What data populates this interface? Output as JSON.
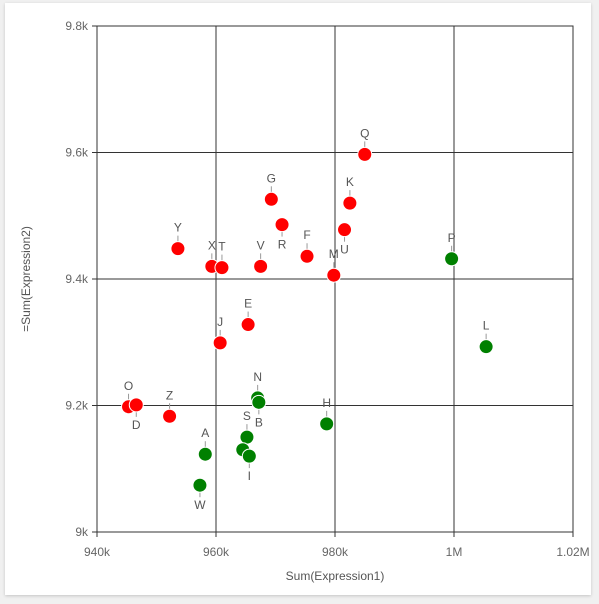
{
  "chart_data": {
    "type": "scatter",
    "xlabel": "Sum(Expression1)",
    "ylabel": "=Sum(Expression2)",
    "xlim": [
      940000,
      1020000
    ],
    "ylim": [
      9000,
      9800
    ],
    "xticks": [
      {
        "value": 940000,
        "label": "940k"
      },
      {
        "value": 960000,
        "label": "960k"
      },
      {
        "value": 980000,
        "label": "980k"
      },
      {
        "value": 1000000,
        "label": "1M"
      },
      {
        "value": 1020000,
        "label": "1.02M"
      }
    ],
    "yticks": [
      {
        "value": 9000,
        "label": "9k"
      },
      {
        "value": 9200,
        "label": "9.2k"
      },
      {
        "value": 9400,
        "label": "9.4k"
      },
      {
        "value": 9600,
        "label": "9.6k"
      },
      {
        "value": 9800,
        "label": "9.8k"
      }
    ],
    "grid": true,
    "colors": {
      "red": "#ff0000",
      "green": "#008000",
      "grid": "#333333"
    },
    "points": [
      {
        "label": "O",
        "x": 945300,
        "y": 9198,
        "color": "red",
        "label_pos": "above"
      },
      {
        "label": "D",
        "x": 946600,
        "y": 9201,
        "color": "red",
        "label_pos": "below"
      },
      {
        "label": "Z",
        "x": 952200,
        "y": 9183,
        "color": "red",
        "label_pos": "above"
      },
      {
        "label": "Y",
        "x": 953600,
        "y": 9448,
        "color": "red",
        "label_pos": "above"
      },
      {
        "label": "A",
        "x": 958200,
        "y": 9123,
        "color": "green",
        "label_pos": "above"
      },
      {
        "label": "W",
        "x": 957300,
        "y": 9074,
        "color": "green",
        "label_pos": "below"
      },
      {
        "label": "X",
        "x": 959300,
        "y": 9420,
        "color": "red",
        "label_pos": "above"
      },
      {
        "label": "T",
        "x": 961000,
        "y": 9418,
        "color": "red",
        "label_pos": "above"
      },
      {
        "label": "J",
        "x": 960700,
        "y": 9299,
        "color": "red",
        "label_pos": "above"
      },
      {
        "label": "E",
        "x": 965400,
        "y": 9328,
        "color": "red",
        "label_pos": "above"
      },
      {
        "label": "S",
        "x": 965200,
        "y": 9150,
        "color": "green",
        "label_pos": "above"
      },
      {
        "label": "",
        "x": 964500,
        "y": 9130,
        "color": "green",
        "label_pos": "none"
      },
      {
        "label": "I",
        "x": 965600,
        "y": 9120,
        "color": "green",
        "label_pos": "below"
      },
      {
        "label": "N",
        "x": 967000,
        "y": 9212,
        "color": "green",
        "label_pos": "above"
      },
      {
        "label": "B",
        "x": 967200,
        "y": 9205,
        "color": "green",
        "label_pos": "below"
      },
      {
        "label": "V",
        "x": 967500,
        "y": 9420,
        "color": "red",
        "label_pos": "above"
      },
      {
        "label": "G",
        "x": 969300,
        "y": 9526,
        "color": "red",
        "label_pos": "above"
      },
      {
        "label": "R",
        "x": 971100,
        "y": 9486,
        "color": "red",
        "label_pos": "below"
      },
      {
        "label": "F",
        "x": 975300,
        "y": 9436,
        "color": "red",
        "label_pos": "above"
      },
      {
        "label": "H",
        "x": 978600,
        "y": 9171,
        "color": "green",
        "label_pos": "above"
      },
      {
        "label": "M",
        "x": 979800,
        "y": 9406,
        "color": "red",
        "label_pos": "above"
      },
      {
        "label": "U",
        "x": 981600,
        "y": 9478,
        "color": "red",
        "label_pos": "below"
      },
      {
        "label": "K",
        "x": 982500,
        "y": 9520,
        "color": "red",
        "label_pos": "above"
      },
      {
        "label": "Q",
        "x": 985000,
        "y": 9597,
        "color": "red",
        "label_pos": "above"
      },
      {
        "label": "P",
        "x": 999600,
        "y": 9432,
        "color": "green",
        "label_pos": "above"
      },
      {
        "label": "L",
        "x": 1005400,
        "y": 9293,
        "color": "green",
        "label_pos": "above"
      }
    ]
  }
}
